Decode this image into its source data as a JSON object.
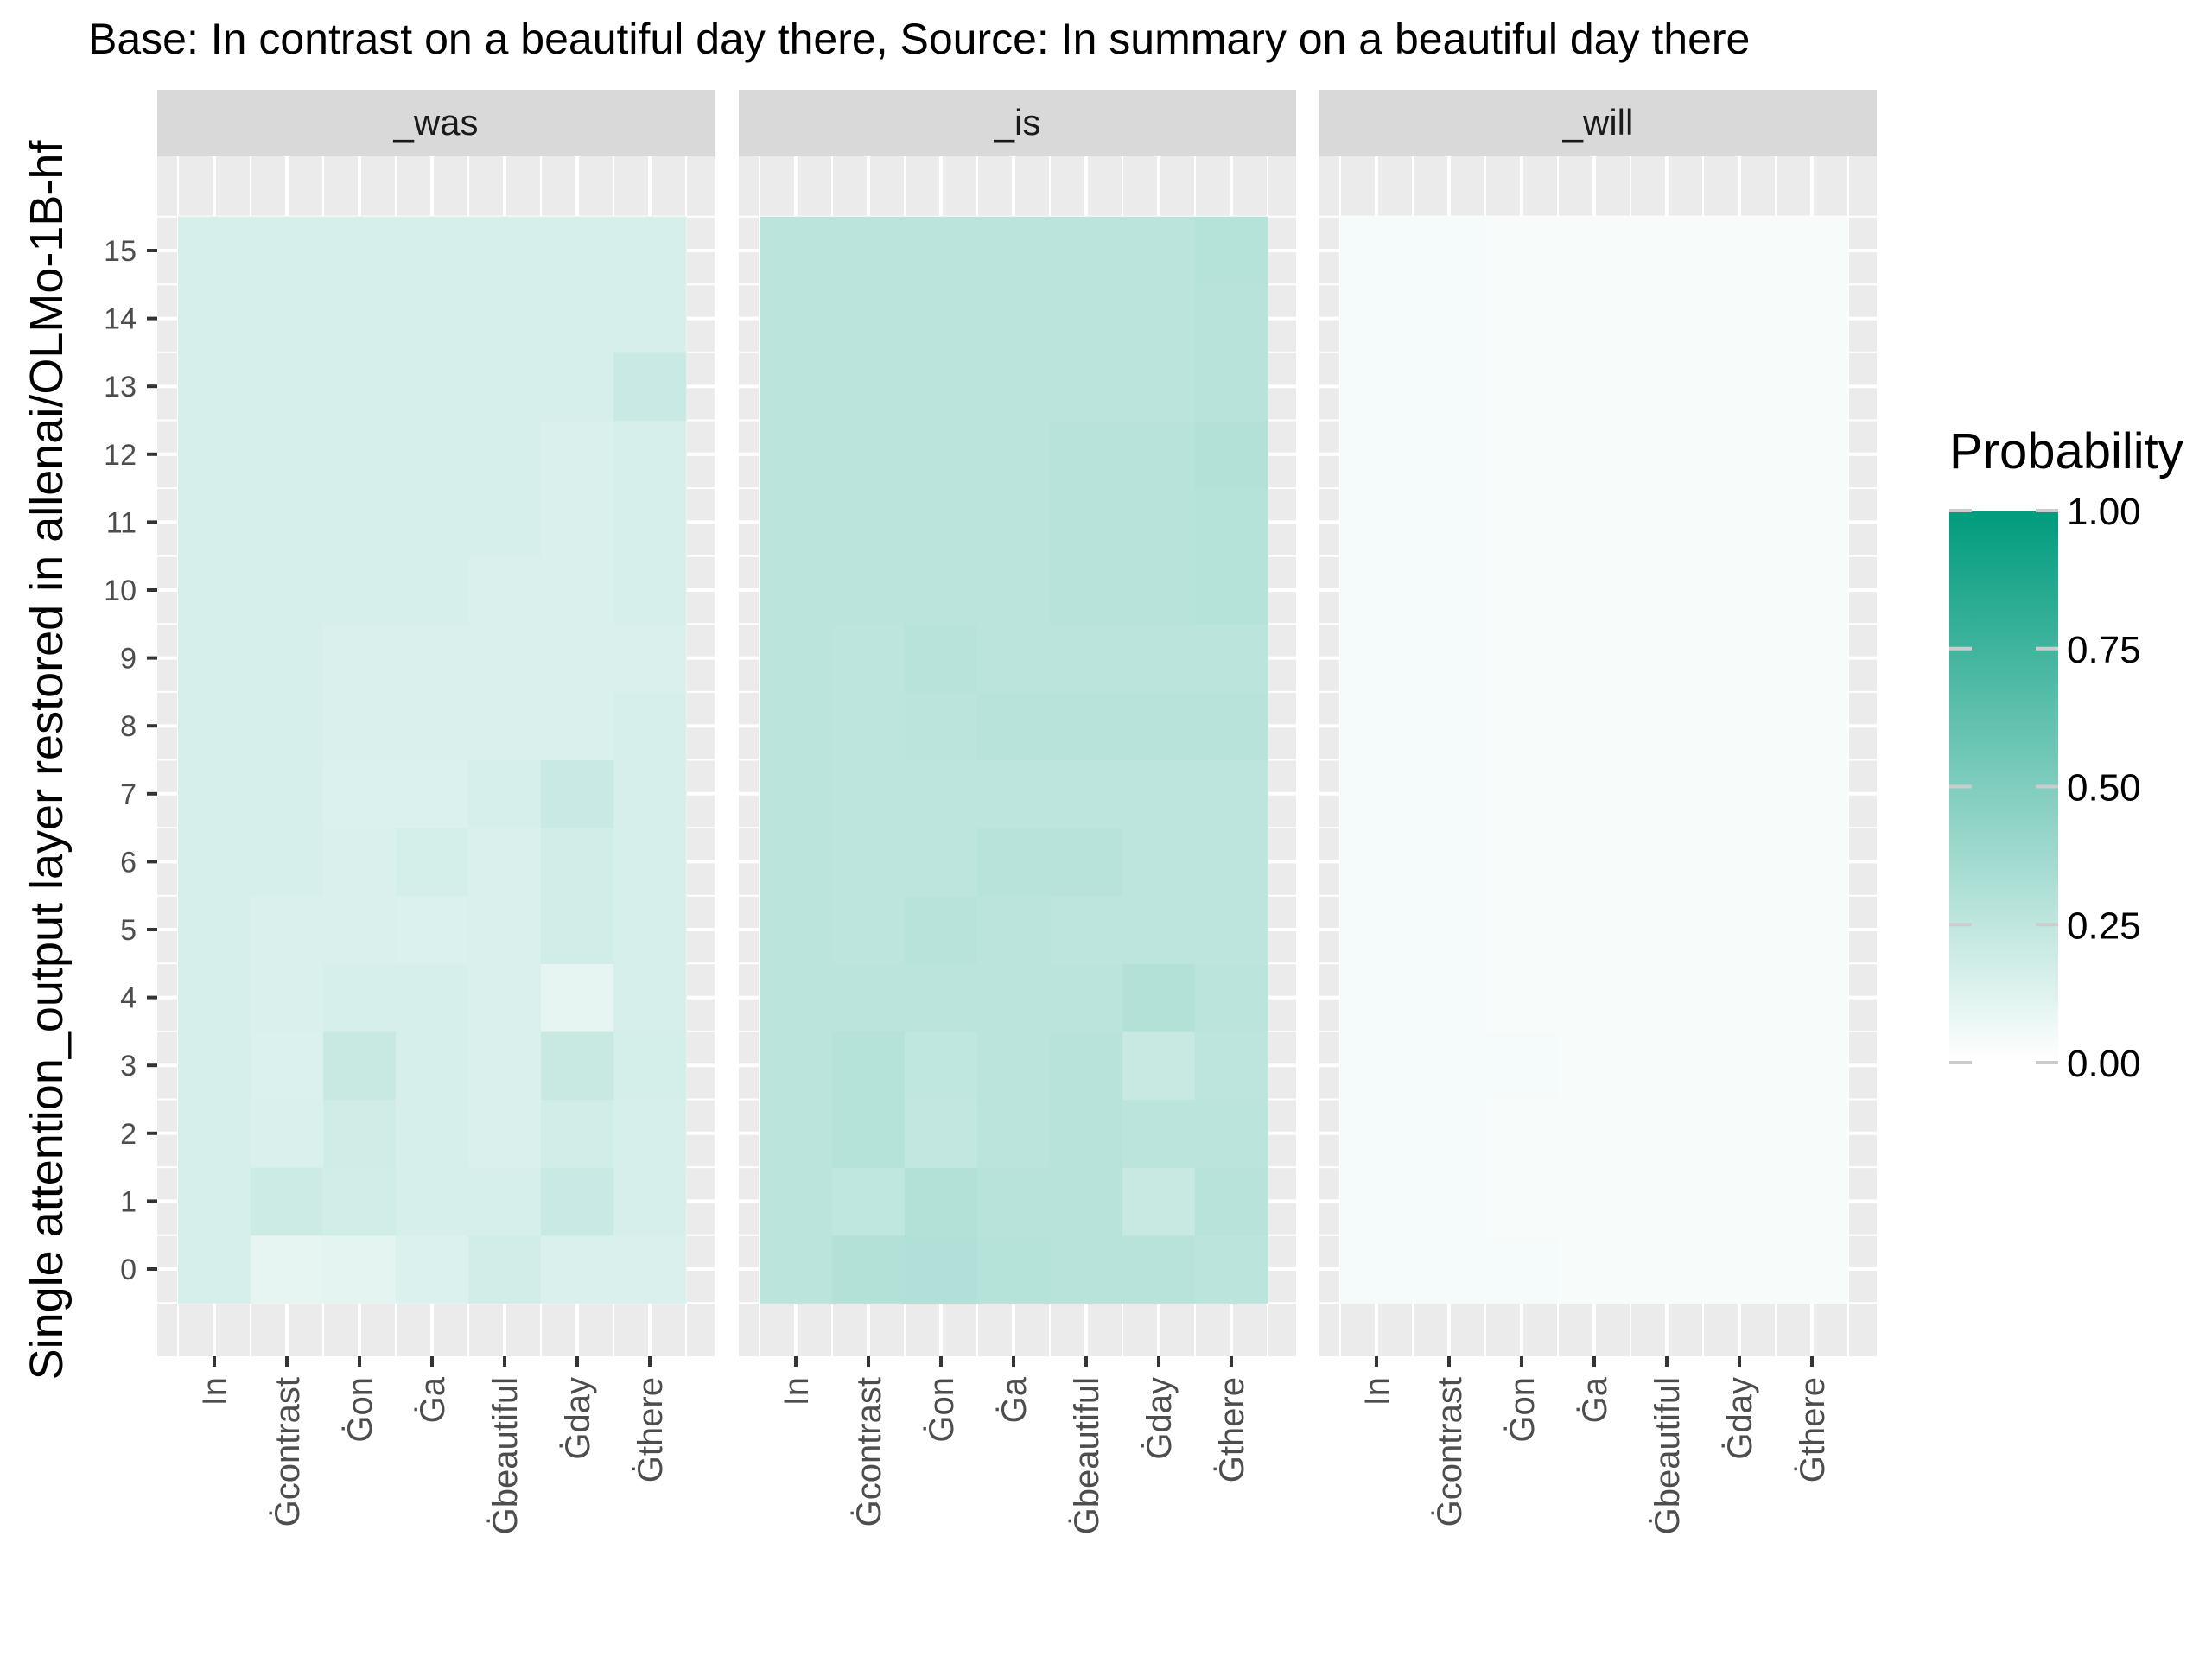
{
  "chart_data": {
    "type": "heatmap",
    "title": "Base: In contrast on a beautiful day there, Source: In summary on a beautiful day there",
    "xlabel": "",
    "ylabel": "Single attention_output layer restored in allenai/OLMo-1B-hf",
    "x_categories": [
      "In",
      "Ġcontrast",
      "Ġon",
      "Ġa",
      "Ġbeautiful",
      "Ġday",
      "Ġthere"
    ],
    "x_display": [
      "In",
      "Ġcontrast",
      "Ġon",
      "Ġa",
      "Ġbeautiful",
      "Ġday",
      "Ġthere"
    ],
    "y_categories": [
      0,
      1,
      2,
      3,
      4,
      5,
      6,
      7,
      8,
      9,
      10,
      11,
      12,
      13,
      14,
      15
    ],
    "legend": {
      "title": "Probability",
      "ticks": [
        "1.00",
        "0.75",
        "0.50",
        "0.25",
        "0.00"
      ],
      "tick_values": [
        1.0,
        0.75,
        0.5,
        0.25,
        0.0
      ],
      "low_color": "#ffffff",
      "high_color": "#009b7d",
      "position": "right"
    },
    "colors": {
      "panel_background": "#ebebeb",
      "grid": "#ffffff",
      "strip_background": "#d9d9d9"
    },
    "panels": [
      {
        "name": "_was",
        "values": [
          [
            0.16,
            0.1,
            0.11,
            0.14,
            0.18,
            0.15,
            0.15
          ],
          [
            0.16,
            0.2,
            0.18,
            0.16,
            0.16,
            0.21,
            0.16
          ],
          [
            0.16,
            0.15,
            0.19,
            0.16,
            0.15,
            0.18,
            0.16
          ],
          [
            0.16,
            0.14,
            0.22,
            0.16,
            0.15,
            0.22,
            0.17
          ],
          [
            0.16,
            0.15,
            0.16,
            0.16,
            0.15,
            0.1,
            0.16
          ],
          [
            0.16,
            0.15,
            0.15,
            0.14,
            0.15,
            0.18,
            0.16
          ],
          [
            0.16,
            0.16,
            0.15,
            0.17,
            0.15,
            0.18,
            0.16
          ],
          [
            0.16,
            0.16,
            0.14,
            0.14,
            0.16,
            0.21,
            0.16
          ],
          [
            0.16,
            0.16,
            0.15,
            0.15,
            0.15,
            0.15,
            0.16
          ],
          [
            0.16,
            0.16,
            0.15,
            0.15,
            0.15,
            0.15,
            0.15
          ],
          [
            0.16,
            0.16,
            0.16,
            0.16,
            0.15,
            0.15,
            0.16
          ],
          [
            0.16,
            0.16,
            0.16,
            0.16,
            0.16,
            0.15,
            0.16
          ],
          [
            0.16,
            0.16,
            0.16,
            0.16,
            0.16,
            0.15,
            0.16
          ],
          [
            0.16,
            0.16,
            0.16,
            0.16,
            0.16,
            0.16,
            0.21
          ],
          [
            0.16,
            0.16,
            0.16,
            0.16,
            0.16,
            0.16,
            0.16
          ],
          [
            0.16,
            0.16,
            0.16,
            0.16,
            0.16,
            0.16,
            0.16
          ]
        ]
      },
      {
        "name": "_is",
        "values": [
          [
            0.27,
            0.3,
            0.31,
            0.29,
            0.28,
            0.28,
            0.27
          ],
          [
            0.27,
            0.25,
            0.3,
            0.28,
            0.28,
            0.22,
            0.28
          ],
          [
            0.27,
            0.29,
            0.24,
            0.27,
            0.28,
            0.27,
            0.27
          ],
          [
            0.27,
            0.29,
            0.25,
            0.27,
            0.28,
            0.22,
            0.26
          ],
          [
            0.27,
            0.27,
            0.27,
            0.27,
            0.27,
            0.3,
            0.27
          ],
          [
            0.27,
            0.26,
            0.28,
            0.27,
            0.26,
            0.26,
            0.26
          ],
          [
            0.27,
            0.26,
            0.26,
            0.28,
            0.28,
            0.26,
            0.26
          ],
          [
            0.27,
            0.26,
            0.26,
            0.26,
            0.26,
            0.26,
            0.26
          ],
          [
            0.27,
            0.26,
            0.27,
            0.28,
            0.28,
            0.28,
            0.28
          ],
          [
            0.27,
            0.26,
            0.28,
            0.27,
            0.27,
            0.27,
            0.27
          ],
          [
            0.27,
            0.27,
            0.27,
            0.27,
            0.28,
            0.28,
            0.29
          ],
          [
            0.27,
            0.27,
            0.27,
            0.27,
            0.28,
            0.28,
            0.29
          ],
          [
            0.27,
            0.27,
            0.27,
            0.27,
            0.28,
            0.28,
            0.3
          ],
          [
            0.27,
            0.27,
            0.27,
            0.27,
            0.27,
            0.27,
            0.28
          ],
          [
            0.27,
            0.27,
            0.27,
            0.27,
            0.27,
            0.27,
            0.28
          ],
          [
            0.27,
            0.27,
            0.27,
            0.27,
            0.27,
            0.27,
            0.29
          ]
        ]
      },
      {
        "name": "_will",
        "values": [
          [
            0.04,
            0.04,
            0.04,
            0.03,
            0.03,
            0.03,
            0.03
          ],
          [
            0.04,
            0.04,
            0.03,
            0.03,
            0.03,
            0.03,
            0.03
          ],
          [
            0.04,
            0.04,
            0.03,
            0.03,
            0.03,
            0.03,
            0.03
          ],
          [
            0.04,
            0.04,
            0.04,
            0.03,
            0.03,
            0.03,
            0.03
          ],
          [
            0.04,
            0.04,
            0.03,
            0.03,
            0.03,
            0.03,
            0.03
          ],
          [
            0.04,
            0.04,
            0.03,
            0.03,
            0.03,
            0.03,
            0.03
          ],
          [
            0.04,
            0.04,
            0.03,
            0.03,
            0.03,
            0.03,
            0.03
          ],
          [
            0.04,
            0.04,
            0.03,
            0.03,
            0.03,
            0.03,
            0.03
          ],
          [
            0.04,
            0.04,
            0.03,
            0.03,
            0.03,
            0.03,
            0.03
          ],
          [
            0.04,
            0.04,
            0.03,
            0.03,
            0.03,
            0.03,
            0.03
          ],
          [
            0.04,
            0.04,
            0.03,
            0.03,
            0.03,
            0.03,
            0.03
          ],
          [
            0.04,
            0.04,
            0.03,
            0.03,
            0.03,
            0.03,
            0.03
          ],
          [
            0.04,
            0.04,
            0.03,
            0.03,
            0.03,
            0.03,
            0.03
          ],
          [
            0.04,
            0.04,
            0.03,
            0.03,
            0.03,
            0.03,
            0.03
          ],
          [
            0.04,
            0.04,
            0.03,
            0.03,
            0.03,
            0.03,
            0.03
          ],
          [
            0.04,
            0.04,
            0.03,
            0.03,
            0.03,
            0.03,
            0.03
          ]
        ]
      }
    ]
  }
}
